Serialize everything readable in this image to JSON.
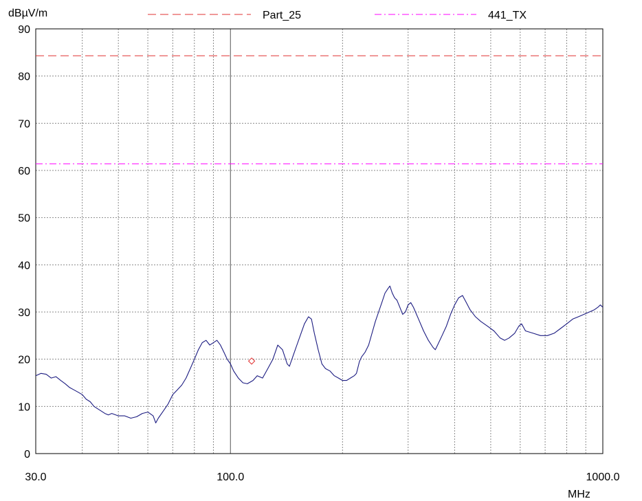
{
  "chart_data": {
    "type": "line",
    "title": "",
    "ylabel": "dBµV/m",
    "xlabel": "MHz",
    "x_scale": "log",
    "xlim": [
      30,
      1000
    ],
    "ylim": [
      0,
      90
    ],
    "grid": true,
    "legend_position": "top",
    "x_tick_labels": [
      "30.0",
      "100.0",
      "1000.0"
    ],
    "y_ticks": [
      "0",
      "10",
      "20",
      "30",
      "40",
      "50",
      "60",
      "70",
      "80",
      "90"
    ],
    "limit_lines": [
      {
        "name": "Part_25",
        "y": 84.3,
        "color": "#e03030",
        "style": "dashed"
      },
      {
        "name": "441_TX",
        "y": 61.4,
        "color": "#ff00ff",
        "style": "dashdot"
      }
    ],
    "series": [
      {
        "color": "#1a1a80",
        "points": [
          [
            30,
            16.5
          ],
          [
            31,
            17
          ],
          [
            32,
            16.8
          ],
          [
            33,
            16
          ],
          [
            34,
            16.3
          ],
          [
            35,
            15.5
          ],
          [
            36,
            14.8
          ],
          [
            37,
            14
          ],
          [
            38,
            13.5
          ],
          [
            39,
            13
          ],
          [
            40,
            12.5
          ],
          [
            41,
            11.5
          ],
          [
            42,
            11
          ],
          [
            43,
            10
          ],
          [
            44,
            9.5
          ],
          [
            45,
            9
          ],
          [
            46,
            8.5
          ],
          [
            47,
            8.2
          ],
          [
            48,
            8.5
          ],
          [
            50,
            8
          ],
          [
            52,
            8
          ],
          [
            54,
            7.5
          ],
          [
            56,
            7.8
          ],
          [
            58,
            8.5
          ],
          [
            60,
            8.8
          ],
          [
            62,
            8
          ],
          [
            63,
            6.5
          ],
          [
            64,
            7.5
          ],
          [
            66,
            9
          ],
          [
            68,
            10.5
          ],
          [
            70,
            12.5
          ],
          [
            72,
            13.5
          ],
          [
            74,
            14.5
          ],
          [
            76,
            16
          ],
          [
            78,
            18
          ],
          [
            80,
            20
          ],
          [
            82,
            22
          ],
          [
            84,
            23.5
          ],
          [
            86,
            24
          ],
          [
            88,
            23
          ],
          [
            90,
            23.5
          ],
          [
            92,
            24
          ],
          [
            94,
            23
          ],
          [
            96,
            21.5
          ],
          [
            98,
            20
          ],
          [
            100,
            19
          ],
          [
            102,
            17.5
          ],
          [
            105,
            16
          ],
          [
            108,
            15
          ],
          [
            111,
            14.8
          ],
          [
            115,
            15.5
          ],
          [
            118,
            16.5
          ],
          [
            122,
            16
          ],
          [
            126,
            18
          ],
          [
            130,
            20
          ],
          [
            134,
            23
          ],
          [
            138,
            22
          ],
          [
            142,
            19
          ],
          [
            144,
            18.5
          ],
          [
            147,
            20.5
          ],
          [
            150,
            22.5
          ],
          [
            154,
            25
          ],
          [
            158,
            27.5
          ],
          [
            162,
            29
          ],
          [
            165,
            28.5
          ],
          [
            168,
            25.5
          ],
          [
            172,
            22
          ],
          [
            176,
            19
          ],
          [
            180,
            18
          ],
          [
            185,
            17.5
          ],
          [
            190,
            16.5
          ],
          [
            195,
            16
          ],
          [
            200,
            15.5
          ],
          [
            205,
            15.5
          ],
          [
            210,
            16
          ],
          [
            215,
            16.5
          ],
          [
            218,
            17
          ],
          [
            222,
            19.5
          ],
          [
            225,
            20.5
          ],
          [
            230,
            21.5
          ],
          [
            235,
            23
          ],
          [
            240,
            25.5
          ],
          [
            245,
            28
          ],
          [
            250,
            30
          ],
          [
            255,
            32
          ],
          [
            260,
            34
          ],
          [
            265,
            35
          ],
          [
            268,
            35.5
          ],
          [
            272,
            34
          ],
          [
            276,
            33
          ],
          [
            280,
            32.5
          ],
          [
            285,
            31
          ],
          [
            290,
            29.5
          ],
          [
            295,
            30
          ],
          [
            300,
            31.5
          ],
          [
            305,
            32
          ],
          [
            310,
            31
          ],
          [
            320,
            28.5
          ],
          [
            330,
            26
          ],
          [
            340,
            24
          ],
          [
            350,
            22.5
          ],
          [
            355,
            22
          ],
          [
            360,
            23
          ],
          [
            370,
            25
          ],
          [
            380,
            27
          ],
          [
            390,
            29.5
          ],
          [
            400,
            31.5
          ],
          [
            410,
            33
          ],
          [
            420,
            33.5
          ],
          [
            430,
            32
          ],
          [
            440,
            30.5
          ],
          [
            455,
            29
          ],
          [
            470,
            28
          ],
          [
            490,
            27
          ],
          [
            510,
            26
          ],
          [
            530,
            24.5
          ],
          [
            545,
            24
          ],
          [
            560,
            24.5
          ],
          [
            580,
            25.5
          ],
          [
            595,
            27
          ],
          [
            605,
            27.5
          ],
          [
            620,
            26
          ],
          [
            650,
            25.5
          ],
          [
            680,
            25
          ],
          [
            710,
            25
          ],
          [
            740,
            25.5
          ],
          [
            770,
            26.5
          ],
          [
            800,
            27.5
          ],
          [
            830,
            28.5
          ],
          [
            860,
            29
          ],
          [
            890,
            29.5
          ],
          [
            920,
            30
          ],
          [
            950,
            30.5
          ],
          [
            970,
            31
          ],
          [
            985,
            31.5
          ],
          [
            1000,
            31
          ]
        ]
      }
    ],
    "markers": [
      {
        "x": 114,
        "y": 19.6,
        "shape": "diamond",
        "color": "#e03030"
      }
    ]
  }
}
